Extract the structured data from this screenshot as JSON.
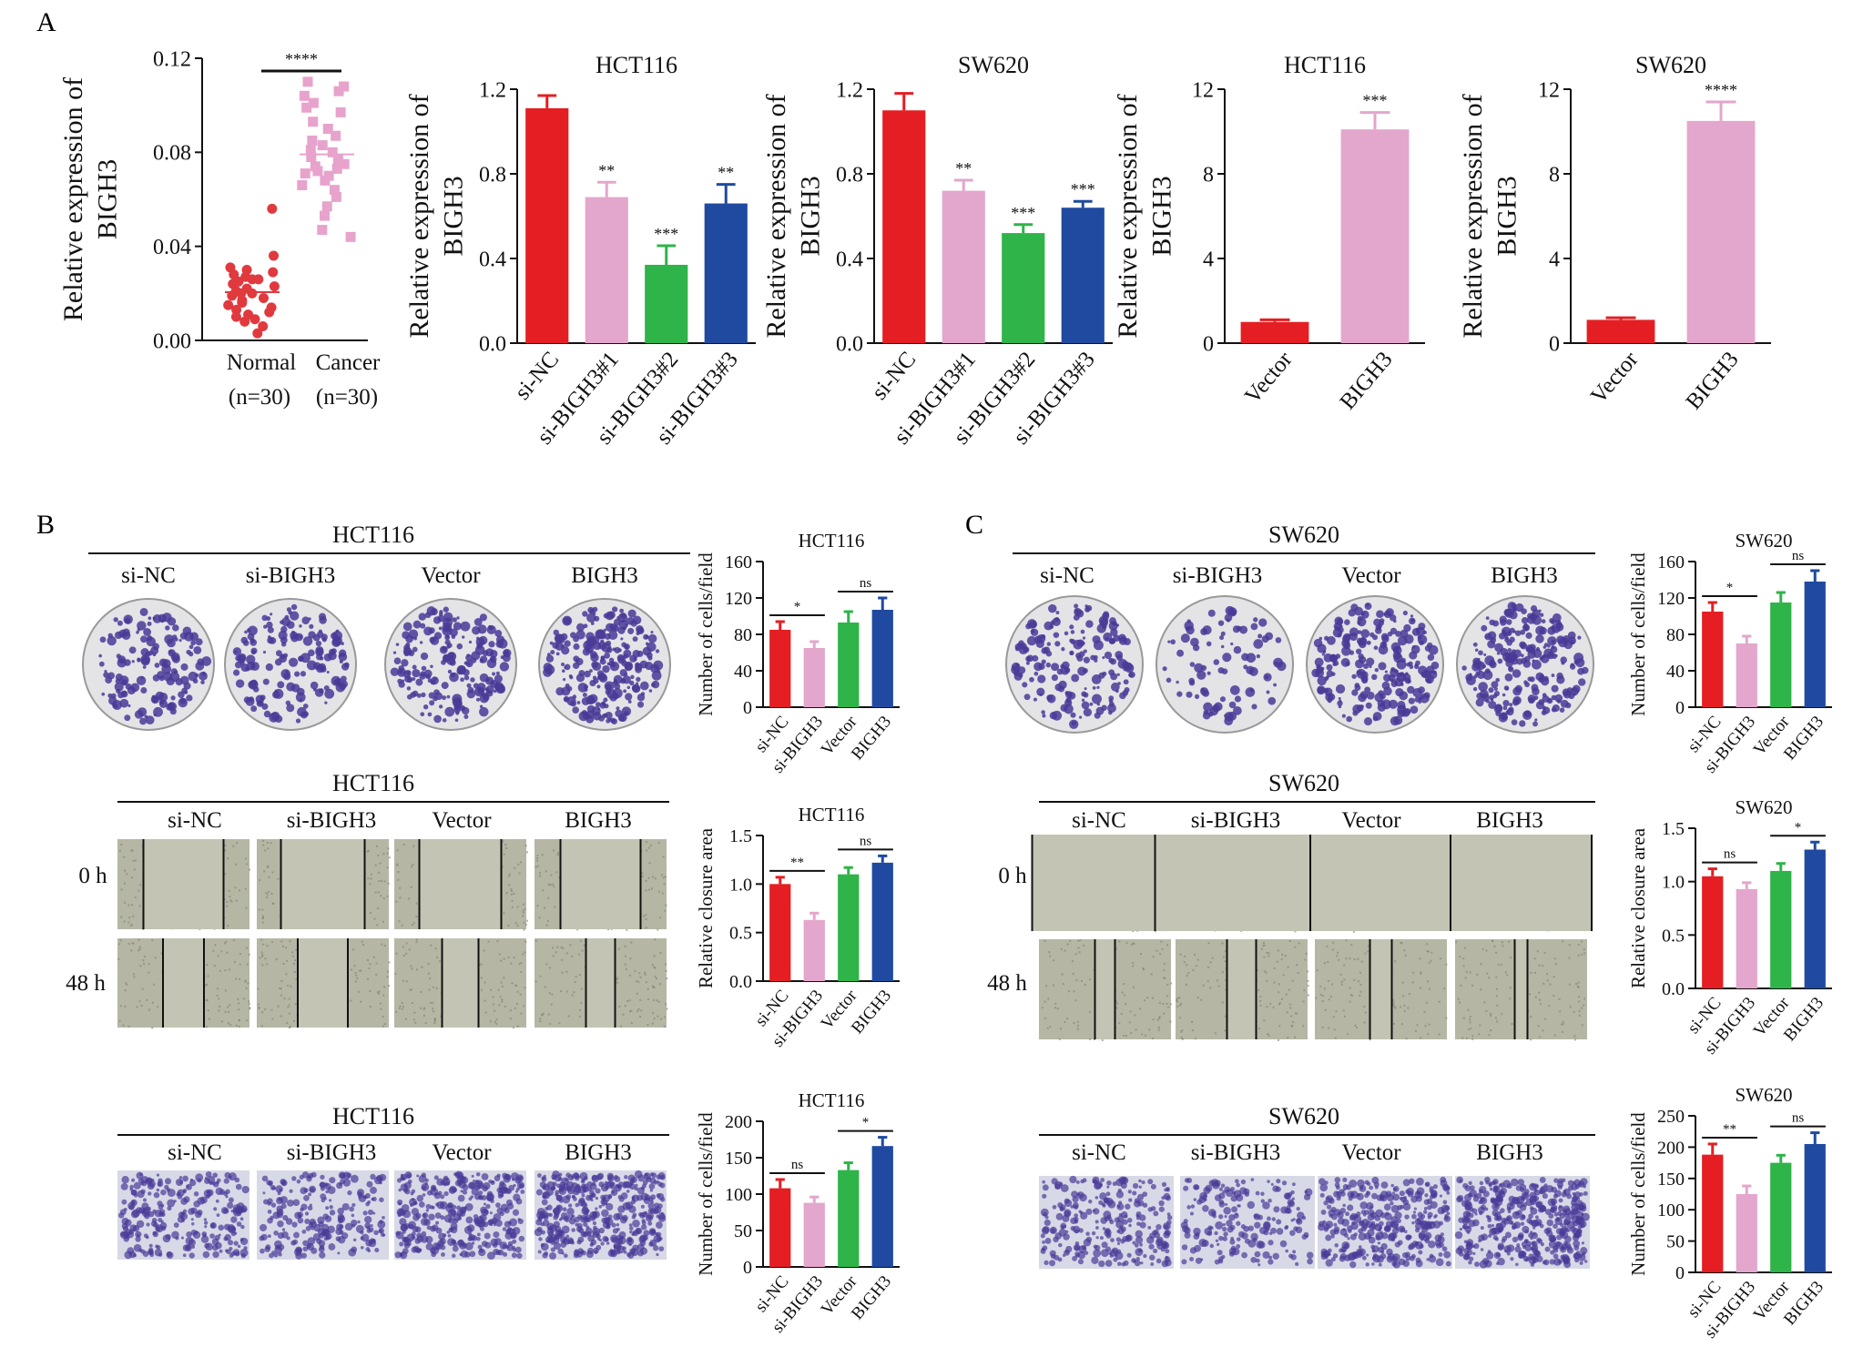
{
  "panel_labels": [
    "A",
    "B",
    "C"
  ],
  "colors": {
    "red": "#e41e22",
    "pink": "#e3a6cc",
    "green": "#2eb449",
    "blue": "#1f4aa0",
    "dot_red": "#e03a3e",
    "dot_pink": "#e7a3cc",
    "well_bg": "#ededee",
    "dish_bg": "#e4e3e6",
    "colony": "#4a3a98",
    "wound_bg": "#b5b6a4"
  },
  "image_groups": {
    "hct116": [
      "si-NC",
      "si-BIGH3",
      "Vector",
      "BIGH3"
    ],
    "sw620": [
      "si-NC",
      "si-BIGH3",
      "Vector",
      "BIGH3"
    ],
    "time_labels": [
      "0 h",
      "48 h"
    ]
  },
  "image_titles": {
    "b_colony": "HCT116",
    "b_wound": "HCT116",
    "b_transwell": "HCT116",
    "c_colony": "SW620",
    "c_wound": "SW620",
    "c_transwell": "SW620"
  },
  "chart_data": [
    {
      "id": "scatter",
      "type": "scatter",
      "title": "",
      "ylabel": "Relative expression of BIGH3",
      "ylim": [
        0,
        0.12
      ],
      "yticks": [
        "0.00",
        "0.04",
        "0.08",
        "0.12"
      ],
      "categories": [
        "Normal",
        "Cancer"
      ],
      "n_labels": [
        "(n=30)",
        "(n=30)"
      ],
      "sig": "****",
      "series": [
        {
          "name": "Normal",
          "color": "#e03a3e",
          "marker": "circle",
          "values": [
            0.056,
            0.036,
            0.031,
            0.03,
            0.029,
            0.028,
            0.027,
            0.026,
            0.026,
            0.025,
            0.024,
            0.023,
            0.022,
            0.021,
            0.02,
            0.02,
            0.019,
            0.018,
            0.017,
            0.016,
            0.015,
            0.014,
            0.013,
            0.012,
            0.011,
            0.01,
            0.009,
            0.008,
            0.006,
            0.003
          ]
        },
        {
          "name": "Cancer",
          "color": "#e7a3cc",
          "marker": "square",
          "values": [
            0.11,
            0.108,
            0.106,
            0.104,
            0.101,
            0.099,
            0.097,
            0.093,
            0.09,
            0.087,
            0.085,
            0.083,
            0.081,
            0.08,
            0.078,
            0.077,
            0.075,
            0.074,
            0.073,
            0.072,
            0.071,
            0.07,
            0.068,
            0.066,
            0.064,
            0.061,
            0.057,
            0.053,
            0.047,
            0.044
          ]
        }
      ]
    },
    {
      "id": "a_hct_si",
      "type": "bar",
      "title": "HCT116",
      "ylabel": "Relative expression of BIGH3",
      "ylim": [
        0,
        1.2
      ],
      "yticks": [
        "0.0",
        "0.4",
        "0.8",
        "1.2"
      ],
      "categories": [
        "si-NC",
        "si-BIGH3#1",
        "si-BIGH3#2",
        "si-BIGH3#3"
      ],
      "values": [
        1.11,
        0.69,
        0.37,
        0.66
      ],
      "errors": [
        0.06,
        0.07,
        0.09,
        0.09
      ],
      "sig": [
        "",
        "**",
        "***",
        "**"
      ]
    },
    {
      "id": "a_sw_si",
      "type": "bar",
      "title": "SW620",
      "ylabel": "Relative expression of BIGH3",
      "ylim": [
        0,
        1.2
      ],
      "yticks": [
        "0.0",
        "0.4",
        "0.8",
        "1.2"
      ],
      "categories": [
        "si-NC",
        "si-BIGH3#1",
        "si-BIGH3#2",
        "si-BIGH3#3"
      ],
      "values": [
        1.1,
        0.72,
        0.52,
        0.64
      ],
      "errors": [
        0.08,
        0.05,
        0.04,
        0.03
      ],
      "sig": [
        "",
        "**",
        "***",
        "***"
      ]
    },
    {
      "id": "a_hct_ov",
      "type": "bar",
      "title": "HCT116",
      "ylabel": "Relative expression of BIGH3",
      "ylim": [
        0,
        12
      ],
      "yticks": [
        "0",
        "4",
        "8",
        "12"
      ],
      "categories": [
        "Vector",
        "BIGH3"
      ],
      "values": [
        1.0,
        10.1
      ],
      "errors": [
        0.1,
        0.8
      ],
      "sig": [
        "",
        "***"
      ]
    },
    {
      "id": "a_sw_ov",
      "type": "bar",
      "title": "SW620",
      "ylabel": "Relative expression of BIGH3",
      "ylim": [
        0,
        12
      ],
      "yticks": [
        "0",
        "4",
        "8",
        "12"
      ],
      "categories": [
        "Vector",
        "BIGH3"
      ],
      "values": [
        1.1,
        10.5
      ],
      "errors": [
        0.1,
        0.9
      ],
      "sig": [
        "",
        "****"
      ]
    },
    {
      "id": "b_colony",
      "type": "bar",
      "title": "HCT116",
      "ylabel": "Number of cells/field",
      "ylim": [
        0,
        160
      ],
      "yticks": [
        "0",
        "40",
        "80",
        "120",
        "160"
      ],
      "categories": [
        "si-NC",
        "si-BIGH3",
        "Vector",
        "BIGH3"
      ],
      "values": [
        85,
        65,
        93,
        107
      ],
      "errors": [
        9,
        7,
        12,
        13
      ],
      "comparisons": [
        {
          "a": 0,
          "b": 1,
          "label": "*"
        },
        {
          "a": 2,
          "b": 3,
          "label": "ns"
        }
      ]
    },
    {
      "id": "b_wound",
      "type": "bar",
      "title": "HCT116",
      "ylabel": "Relative closure area",
      "ylim": [
        0,
        1.5
      ],
      "yticks": [
        "0.0",
        "0.5",
        "1.0",
        "1.5"
      ],
      "categories": [
        "si-NC",
        "si-BIGH3",
        "Vector",
        "BIGH3"
      ],
      "values": [
        1.0,
        0.63,
        1.1,
        1.22
      ],
      "errors": [
        0.07,
        0.07,
        0.07,
        0.07
      ],
      "comparisons": [
        {
          "a": 0,
          "b": 1,
          "label": "**"
        },
        {
          "a": 2,
          "b": 3,
          "label": "ns"
        }
      ]
    },
    {
      "id": "b_transwell",
      "type": "bar",
      "title": "HCT116",
      "ylabel": "Number of cells/field",
      "ylim": [
        0,
        200
      ],
      "yticks": [
        "0",
        "50",
        "100",
        "150",
        "200"
      ],
      "categories": [
        "si-NC",
        "si-BIGH3",
        "Vector",
        "BIGH3"
      ],
      "values": [
        108,
        88,
        133,
        166
      ],
      "errors": [
        12,
        8,
        10,
        12
      ],
      "comparisons": [
        {
          "a": 0,
          "b": 1,
          "label": "ns"
        },
        {
          "a": 2,
          "b": 3,
          "label": "*"
        }
      ]
    },
    {
      "id": "c_colony",
      "type": "bar",
      "title": "SW620",
      "ylabel": "Number of cells/field",
      "ylim": [
        0,
        160
      ],
      "yticks": [
        "0",
        "40",
        "80",
        "120",
        "160"
      ],
      "categories": [
        "si-NC",
        "si-BIGH3",
        "Vector",
        "BIGH3"
      ],
      "values": [
        105,
        70,
        115,
        138
      ],
      "errors": [
        10,
        8,
        11,
        12
      ],
      "comparisons": [
        {
          "a": 0,
          "b": 1,
          "label": "*"
        },
        {
          "a": 2,
          "b": 3,
          "label": "ns"
        }
      ]
    },
    {
      "id": "c_wound",
      "type": "bar",
      "title": "SW620",
      "ylabel": "Relative closure area",
      "ylim": [
        0,
        1.5
      ],
      "yticks": [
        "0.0",
        "0.5",
        "1.0",
        "1.5"
      ],
      "categories": [
        "si-NC",
        "si-BIGH3",
        "Vector",
        "BIGH3"
      ],
      "values": [
        1.05,
        0.93,
        1.1,
        1.3
      ],
      "errors": [
        0.07,
        0.06,
        0.07,
        0.07
      ],
      "comparisons": [
        {
          "a": 0,
          "b": 1,
          "label": "ns"
        },
        {
          "a": 2,
          "b": 3,
          "label": "*"
        }
      ]
    },
    {
      "id": "c_transwell",
      "type": "bar",
      "title": "SW620",
      "ylabel": "Number of cells/field",
      "ylim": [
        0,
        250
      ],
      "yticks": [
        "0",
        "50",
        "100",
        "150",
        "200",
        "250"
      ],
      "categories": [
        "si-NC",
        "si-BIGH3",
        "Vector",
        "BIGH3"
      ],
      "values": [
        188,
        125,
        175,
        205
      ],
      "errors": [
        17,
        13,
        12,
        18
      ],
      "comparisons": [
        {
          "a": 0,
          "b": 1,
          "label": "**"
        },
        {
          "a": 2,
          "b": 3,
          "label": "ns"
        }
      ]
    }
  ]
}
